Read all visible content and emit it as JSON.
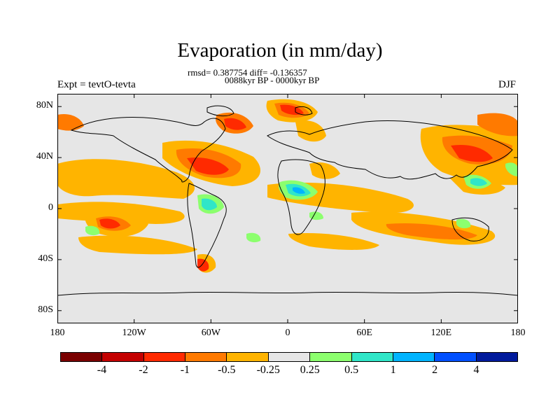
{
  "title": "Evaporation (in mm/day)",
  "stats_line": "rmsd= 0.387754 diff= -0.136357",
  "period_line": "0088kyr BP - 0000kyr BP",
  "experiment": "Expt = tevtO-tevta",
  "season": "DJF",
  "map": {
    "projection": "equirectangular",
    "lon_range": [
      -180,
      180
    ],
    "lat_range": [
      -90,
      90
    ],
    "background_color": "#e6e6e6",
    "coastline_color": "#000000",
    "y_ticks": [
      {
        "lat": 80,
        "label": "80N"
      },
      {
        "lat": 40,
        "label": "40N"
      },
      {
        "lat": 0,
        "label": "0"
      },
      {
        "lat": -40,
        "label": "40S"
      },
      {
        "lat": -80,
        "label": "80S"
      }
    ],
    "x_ticks": [
      {
        "lon": -180,
        "label": "180"
      },
      {
        "lon": -120,
        "label": "120W"
      },
      {
        "lon": -60,
        "label": "60W"
      },
      {
        "lon": 0,
        "label": "0"
      },
      {
        "lon": 60,
        "label": "60E"
      },
      {
        "lon": 120,
        "label": "120E"
      },
      {
        "lon": 180,
        "label": "180"
      }
    ]
  },
  "colorbar": {
    "colors": [
      "#7a0000",
      "#c40000",
      "#ff2a00",
      "#ff7a00",
      "#ffb400",
      "#e6e6e6",
      "#8cff6e",
      "#30e6c8",
      "#00b4ff",
      "#0050ff",
      "#001a9c"
    ],
    "labels": [
      "-4",
      "-2",
      "-1",
      "-0.5",
      "-0.25",
      "0.25",
      "0.5",
      "1",
      "2",
      "4"
    ]
  }
}
